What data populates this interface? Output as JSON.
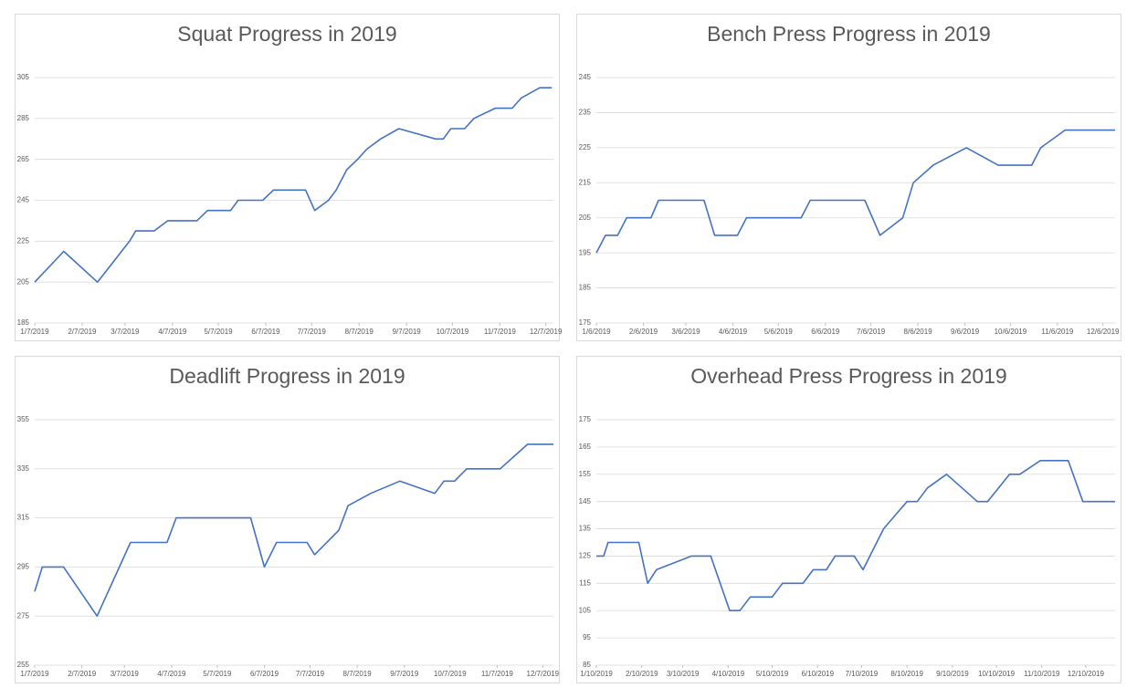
{
  "chart_data": [
    {
      "type": "line",
      "title": "Squat Progress in 2019",
      "color": "#4472c4",
      "grid": true,
      "x": [
        "1/7/2019",
        "1/26/2019",
        "2/17/2019",
        "3/10/2019",
        "3/14/2019",
        "3/26/2019",
        "4/4/2019",
        "4/23/2019",
        "4/30/2019",
        "5/15/2019",
        "5/20/2019",
        "6/5/2019",
        "6/12/2019",
        "7/3/2019",
        "7/9/2019",
        "7/18/2019",
        "7/23/2019",
        "7/30/2019",
        "8/6/2019",
        "8/12/2019",
        "8/21/2019",
        "9/2/2019",
        "9/26/2019",
        "10/1/2019",
        "10/6/2019",
        "10/15/2019",
        "10/21/2019",
        "11/4/2019",
        "11/15/2019",
        "11/21/2019",
        "12/3/2019",
        "12/11/2019"
      ],
      "values": [
        205,
        220,
        205,
        225,
        230,
        230,
        235,
        235,
        240,
        240,
        245,
        245,
        250,
        250,
        240,
        245,
        250,
        260,
        265,
        270,
        275,
        280,
        275,
        275,
        280,
        280,
        285,
        290,
        290,
        295,
        300,
        300
      ],
      "xlim": [
        "1/7/2019",
        "12/12/2019"
      ],
      "xticks": [
        "1/7/2019",
        "2/7/2019",
        "3/7/2019",
        "4/7/2019",
        "5/7/2019",
        "6/7/2019",
        "7/7/2019",
        "8/7/2019",
        "9/7/2019",
        "10/7/2019",
        "11/7/2019",
        "12/7/2019"
      ],
      "ylim": [
        185,
        305
      ],
      "yticks": [
        185,
        205,
        225,
        245,
        265,
        285,
        305
      ]
    },
    {
      "type": "line",
      "title": "Bench Press Progress in 2019",
      "color": "#4472c4",
      "grid": true,
      "x": [
        "1/6/2019",
        "1/12/2019",
        "1/20/2019",
        "1/26/2019",
        "2/11/2019",
        "2/16/2019",
        "3/18/2019",
        "3/25/2019",
        "4/9/2019",
        "4/15/2019",
        "5/21/2019",
        "5/27/2019",
        "7/2/2019",
        "7/12/2019",
        "7/27/2019",
        "8/3/2019",
        "8/16/2019",
        "9/7/2019",
        "9/28/2019",
        "10/20/2019",
        "10/26/2019",
        "11/11/2019",
        "12/14/2019"
      ],
      "values": [
        195,
        200,
        200,
        205,
        205,
        210,
        210,
        200,
        200,
        205,
        205,
        210,
        210,
        200,
        205,
        215,
        220,
        225,
        220,
        220,
        225,
        230,
        230
      ],
      "xlim": [
        "1/6/2019",
        "12/14/2019"
      ],
      "xticks": [
        "1/6/2019",
        "2/6/2019",
        "3/6/2019",
        "4/6/2019",
        "5/6/2019",
        "6/6/2019",
        "7/6/2019",
        "8/6/2019",
        "9/6/2019",
        "10/6/2019",
        "11/6/2019",
        "12/6/2019"
      ],
      "ylim": [
        175,
        245
      ],
      "yticks": [
        175,
        185,
        195,
        205,
        215,
        225,
        235,
        245
      ]
    },
    {
      "type": "line",
      "title": "Deadlift Progress in 2019",
      "color": "#4472c4",
      "grid": true,
      "x": [
        "1/7/2019",
        "1/12/2019",
        "1/26/2019",
        "2/17/2019",
        "3/11/2019",
        "4/4/2019",
        "4/10/2019",
        "5/29/2019",
        "6/7/2019",
        "6/15/2019",
        "7/5/2019",
        "7/10/2019",
        "7/26/2019",
        "8/1/2019",
        "8/16/2019",
        "9/4/2019",
        "9/27/2019",
        "10/3/2019",
        "10/10/2019",
        "10/18/2019",
        "11/9/2019",
        "11/27/2019",
        "12/14/2019"
      ],
      "values": [
        285,
        295,
        295,
        275,
        305,
        305,
        315,
        315,
        295,
        305,
        305,
        300,
        310,
        320,
        325,
        330,
        325,
        330,
        330,
        335,
        335,
        345,
        345
      ],
      "xlim": [
        "1/7/2019",
        "12/14/2019"
      ],
      "xticks": [
        "1/7/2019",
        "2/7/2019",
        "3/7/2019",
        "4/7/2019",
        "5/7/2019",
        "6/7/2019",
        "7/7/2019",
        "8/7/2019",
        "9/7/2019",
        "10/7/2019",
        "11/7/2019",
        "12/7/2019"
      ],
      "ylim": [
        255,
        355
      ],
      "yticks": [
        255,
        275,
        295,
        315,
        335,
        355
      ]
    },
    {
      "type": "line",
      "title": "Overhead Press Progress in 2019",
      "color": "#4472c4",
      "grid": true,
      "x": [
        "1/10/2019",
        "1/15/2019",
        "1/18/2019",
        "2/8/2019",
        "2/14/2019",
        "2/20/2019",
        "3/16/2019",
        "3/29/2019",
        "4/11/2019",
        "4/18/2019",
        "4/25/2019",
        "5/10/2019",
        "5/17/2019",
        "5/31/2019",
        "6/7/2019",
        "6/16/2019",
        "6/22/2019",
        "7/5/2019",
        "7/11/2019",
        "7/25/2019",
        "8/2/2019",
        "8/10/2019",
        "8/17/2019",
        "8/24/2019",
        "9/6/2019",
        "9/27/2019",
        "10/4/2019",
        "10/19/2019",
        "10/26/2019",
        "11/9/2019",
        "11/28/2019",
        "12/8/2019",
        "12/30/2019"
      ],
      "values": [
        125,
        125,
        130,
        130,
        115,
        120,
        125,
        125,
        105,
        105,
        110,
        110,
        115,
        115,
        120,
        120,
        125,
        125,
        120,
        135,
        140,
        145,
        145,
        150,
        155,
        145,
        145,
        155,
        155,
        160,
        160,
        145,
        145
      ],
      "xlim": [
        "1/10/2019",
        "12/30/2019"
      ],
      "xticks": [
        "1/10/2019",
        "2/10/2019",
        "3/10/2019",
        "4/10/2019",
        "5/10/2019",
        "6/10/2019",
        "7/10/2019",
        "8/10/2019",
        "9/10/2019",
        "10/10/2019",
        "11/10/2019",
        "12/10/2019"
      ],
      "ylim": [
        85,
        175
      ],
      "yticks": [
        85,
        95,
        105,
        115,
        125,
        135,
        145,
        155,
        165,
        175
      ]
    }
  ]
}
